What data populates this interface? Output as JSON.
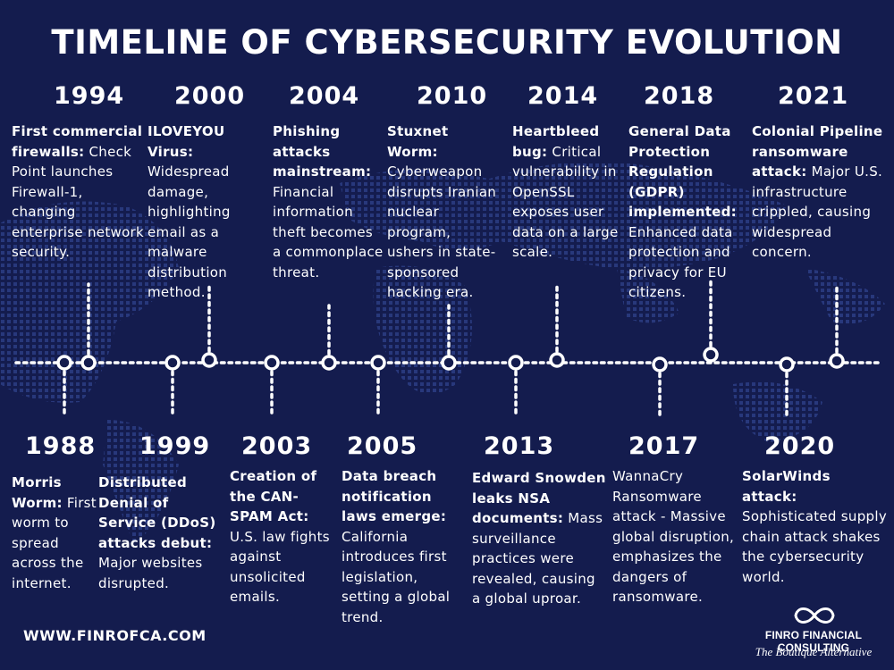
{
  "title": "TIMELINE OF CYBERSECURITY EVOLUTION",
  "colors": {
    "background": "#141c4e",
    "text": "#ffffff",
    "map_dots": "#2e3f86"
  },
  "events_top": [
    {
      "year": "1994",
      "bold": "First commercial firewalls:",
      "text": " Check Point launches Firewall-1, changing enterprise network security."
    },
    {
      "year": "2000",
      "bold": "ILOVEYOU Virus:",
      "text": " Widespread damage, highlighting email as a malware distribution method."
    },
    {
      "year": "2004",
      "bold": "Phishing attacks mainstream:",
      "text": " Financial information theft becomes a commonplace threat."
    },
    {
      "year": "2010",
      "bold": "Stuxnet Worm:",
      "text": " Cyberweapon disrupts Iranian nuclear program, ushers in state-sponsored hacking era."
    },
    {
      "year": "2014",
      "bold": "Heartbleed bug:",
      "text": " Critical vulnerability in OpenSSL exposes user data on a large scale."
    },
    {
      "year": "2018",
      "bold": "General Data Protection Regulation (GDPR) implemented:",
      "text": " Enhanced data protection and privacy for EU citizens."
    },
    {
      "year": "2021",
      "bold": "Colonial Pipeline ransomware attack:",
      "text": " Major U.S. infrastructure crippled, causing widespread concern."
    }
  ],
  "events_bottom": [
    {
      "year": "1988",
      "bold": "Morris Worm:",
      "text": " First worm to spread across the internet."
    },
    {
      "year": "1999",
      "bold": "Distributed Denial of Service (DDoS) attacks debut:",
      "text": " Major websites disrupted."
    },
    {
      "year": "2003",
      "bold": "Creation of the CAN-SPAM Act:",
      "text": " U.S. law fights against unsolicited emails."
    },
    {
      "year": "2005",
      "bold": "Data breach notification laws emerge:",
      "text": " California introduces first legislation, setting a global trend."
    },
    {
      "year": "2013",
      "bold": "Edward Snowden leaks NSA documents:",
      "text": " Mass surveillance practices were revealed, causing a global uproar."
    },
    {
      "year": "2017",
      "bold": "",
      "text": "WannaCry Ransomware attack - Massive global disruption, emphasizes the dangers of ransomware."
    },
    {
      "year": "2020",
      "bold": "SolarWinds attack:",
      "text": " Sophisticated supply chain attack shakes the cybersecurity world."
    }
  ],
  "footer": {
    "website": "WWW.FINROFCA.COM",
    "company": "FINRO FINANCIAL CONSULTING",
    "tagline": "The Boutique Alternative",
    "logo_icon": "infinity-icon"
  }
}
